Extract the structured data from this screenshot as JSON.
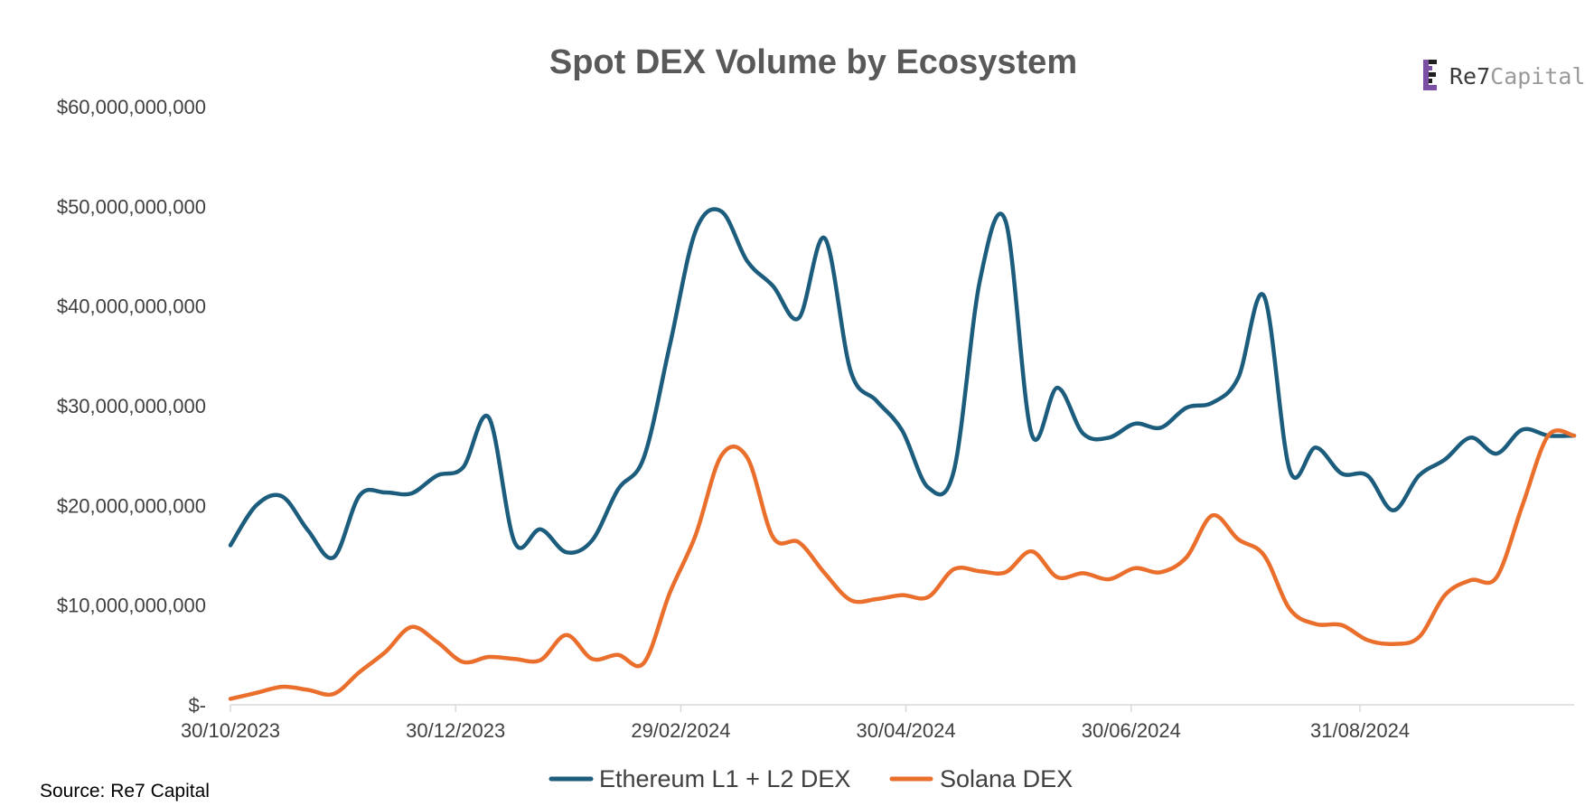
{
  "colors": {
    "ethereum": "#1c5d7e",
    "solana": "#eb6f2c",
    "axis": "#d9d9d9",
    "logo_purple": "#7b4fa3",
    "logo_dark": "#1f1f1f"
  },
  "source": "Source: Re7 Capital",
  "logo": {
    "name_part1": "Re7",
    "name_part2": "Capital",
    "icon": "re7-logo-icon"
  },
  "chart_data": {
    "type": "line",
    "title": "Spot DEX Volume by Ecosystem",
    "xlabel": "",
    "ylabel": "",
    "ylim": [
      0,
      60000000000
    ],
    "x_range": [
      "2023-10-30",
      "2024-10-28"
    ],
    "y_ticks": [
      {
        "value": 0,
        "label": "$-"
      },
      {
        "value": 10000000000,
        "label": "$10,000,000,000"
      },
      {
        "value": 20000000000,
        "label": "$20,000,000,000"
      },
      {
        "value": 30000000000,
        "label": "$30,000,000,000"
      },
      {
        "value": 40000000000,
        "label": "$40,000,000,000"
      },
      {
        "value": 50000000000,
        "label": "$50,000,000,000"
      },
      {
        "value": 60000000000,
        "label": "$60,000,000,000"
      }
    ],
    "x_ticks": [
      {
        "date": "2023-10-30",
        "label": "30/10/2023"
      },
      {
        "date": "2023-12-30",
        "label": "30/12/2023"
      },
      {
        "date": "2024-02-29",
        "label": "29/02/2024"
      },
      {
        "date": "2024-04-30",
        "label": "30/04/2024"
      },
      {
        "date": "2024-06-30",
        "label": "30/06/2024"
      },
      {
        "date": "2024-08-31",
        "label": "31/08/2024"
      }
    ],
    "grid": false,
    "legend_position": "bottom",
    "x": [
      "2023-10-30",
      "2023-11-06",
      "2023-11-13",
      "2023-11-20",
      "2023-11-27",
      "2023-12-04",
      "2023-12-11",
      "2023-12-18",
      "2023-12-25",
      "2024-01-01",
      "2024-01-08",
      "2024-01-15",
      "2024-01-22",
      "2024-01-29",
      "2024-02-05",
      "2024-02-12",
      "2024-02-19",
      "2024-02-26",
      "2024-03-04",
      "2024-03-11",
      "2024-03-18",
      "2024-03-25",
      "2024-04-01",
      "2024-04-08",
      "2024-04-15",
      "2024-04-22",
      "2024-04-29",
      "2024-05-06",
      "2024-05-13",
      "2024-05-20",
      "2024-05-27",
      "2024-06-03",
      "2024-06-10",
      "2024-06-17",
      "2024-06-24",
      "2024-07-01",
      "2024-07-08",
      "2024-07-15",
      "2024-07-22",
      "2024-07-29",
      "2024-08-05",
      "2024-08-12",
      "2024-08-19",
      "2024-08-26",
      "2024-09-02",
      "2024-09-09",
      "2024-09-16",
      "2024-09-23",
      "2024-09-30",
      "2024-10-07",
      "2024-10-14",
      "2024-10-21",
      "2024-10-28"
    ],
    "series": [
      {
        "name": "Ethereum L1 + L2 DEX",
        "color": "#1c5d7e",
        "values": [
          16000000000.0,
          20000000000.0,
          20900000000.0,
          17500000000.0,
          14800000000.0,
          21000000000.0,
          21300000000.0,
          21200000000.0,
          23000000000.0,
          23800000000.0,
          28800000000.0,
          16300000000.0,
          17600000000.0,
          15300000000.0,
          16500000000.0,
          21600000000.0,
          24800000000.0,
          36000000000.0,
          47500000000.0,
          49500000000.0,
          44500000000.0,
          42000000000.0,
          38800000000.0,
          46800000000.0,
          33500000000.0,
          30500000000.0,
          27500000000.0,
          21800000000.0,
          23500000000.0,
          42500000000.0,
          48500000000.0,
          27200000000.0,
          31800000000.0,
          27200000000.0,
          26800000000.0,
          28200000000.0,
          27800000000.0,
          29800000000.0,
          30300000000.0,
          32800000000.0,
          41000000000.0,
          23500000000.0,
          25800000000.0,
          23200000000.0,
          23000000000.0,
          19500000000.0,
          23000000000.0,
          24600000000.0,
          26800000000.0,
          25200000000.0,
          27600000000.0,
          27000000000.0,
          27000000000.0
        ]
      },
      {
        "name": "Solana DEX",
        "color": "#eb6f2c",
        "values": [
          600000000.0,
          1200000000.0,
          1800000000.0,
          1500000000.0,
          1100000000.0,
          3300000000.0,
          5300000000.0,
          7800000000.0,
          6300000000.0,
          4300000000.0,
          4800000000.0,
          4600000000.0,
          4500000000.0,
          7000000000.0,
          4600000000.0,
          5000000000.0,
          4200000000.0,
          11200000000.0,
          17000000000.0,
          25000000000.0,
          24800000000.0,
          16800000000.0,
          16300000000.0,
          13200000000.0,
          10500000000.0,
          10600000000.0,
          11000000000.0,
          10800000000.0,
          13600000000.0,
          13400000000.0,
          13300000000.0,
          15400000000.0,
          12800000000.0,
          13200000000.0,
          12600000000.0,
          13700000000.0,
          13300000000.0,
          14800000000.0,
          19000000000.0,
          16600000000.0,
          15000000000.0,
          9600000000.0,
          8100000000.0,
          8000000000.0,
          6500000000.0,
          6100000000.0,
          6800000000.0,
          11000000000.0,
          12500000000.0,
          12800000000.0,
          20000000000.0,
          27000000000.0,
          27000000000.0
        ]
      }
    ]
  }
}
